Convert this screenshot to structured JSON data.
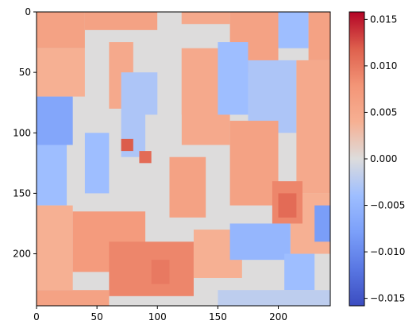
{
  "chart_data": {
    "type": "heatmap",
    "title": "",
    "xlabel": "",
    "ylabel": "",
    "xlim": [
      0,
      243
    ],
    "ylim": [
      243,
      0
    ],
    "x_ticks": [
      0,
      50,
      100,
      150,
      200
    ],
    "y_ticks": [
      0,
      50,
      100,
      150,
      200
    ],
    "colormap": "coolwarm",
    "colorbar": {
      "vmin": -0.0158,
      "vmax": 0.0158,
      "ticks": [
        0.015,
        0.01,
        0.005,
        0.0,
        -0.005,
        -0.01,
        -0.015
      ],
      "tick_labels": [
        "0.015",
        "0.010",
        "0.005",
        "0.000",
        "−0.005",
        "−0.010",
        "−0.015"
      ]
    },
    "regions": [
      {
        "x": [
          0,
          243
        ],
        "y": [
          0,
          243
        ],
        "value": 0.0
      },
      {
        "x": [
          0,
          40
        ],
        "y": [
          0,
          30
        ],
        "value": 0.006
      },
      {
        "x": [
          0,
          40
        ],
        "y": [
          30,
          70
        ],
        "value": 0.004
      },
      {
        "x": [
          40,
          100
        ],
        "y": [
          0,
          15
        ],
        "value": 0.006
      },
      {
        "x": [
          100,
          120
        ],
        "y": [
          0,
          20
        ],
        "value": 0.0
      },
      {
        "x": [
          120,
          160
        ],
        "y": [
          0,
          10
        ],
        "value": 0.005
      },
      {
        "x": [
          160,
          200
        ],
        "y": [
          0,
          50
        ],
        "value": 0.006
      },
      {
        "x": [
          200,
          225
        ],
        "y": [
          0,
          30
        ],
        "value": -0.004
      },
      {
        "x": [
          225,
          243
        ],
        "y": [
          0,
          40
        ],
        "value": 0.006
      },
      {
        "x": [
          0,
          30
        ],
        "y": [
          70,
          110
        ],
        "value": -0.007
      },
      {
        "x": [
          0,
          25
        ],
        "y": [
          110,
          160
        ],
        "value": -0.004
      },
      {
        "x": [
          40,
          60
        ],
        "y": [
          100,
          150
        ],
        "value": -0.004
      },
      {
        "x": [
          60,
          80
        ],
        "y": [
          25,
          80
        ],
        "value": 0.005
      },
      {
        "x": [
          70,
          100
        ],
        "y": [
          50,
          120
        ],
        "value": -0.003
      },
      {
        "x": [
          120,
          160
        ],
        "y": [
          30,
          110
        ],
        "value": 0.005
      },
      {
        "x": [
          150,
          175
        ],
        "y": [
          25,
          85
        ],
        "value": -0.004
      },
      {
        "x": [
          175,
          215
        ],
        "y": [
          40,
          100
        ],
        "value": -0.003
      },
      {
        "x": [
          215,
          243
        ],
        "y": [
          40,
          150
        ],
        "value": 0.005
      },
      {
        "x": [
          210,
          243
        ],
        "y": [
          150,
          200
        ],
        "value": 0.004
      },
      {
        "x": [
          230,
          243
        ],
        "y": [
          160,
          190
        ],
        "value": -0.008
      },
      {
        "x": [
          90,
          120
        ],
        "y": [
          85,
          160
        ],
        "value": 0.0
      },
      {
        "x": [
          110,
          140
        ],
        "y": [
          120,
          170
        ],
        "value": 0.006
      },
      {
        "x": [
          160,
          200
        ],
        "y": [
          90,
          160
        ],
        "value": 0.006
      },
      {
        "x": [
          195,
          220
        ],
        "y": [
          140,
          175
        ],
        "value": 0.009
      },
      {
        "x": [
          0,
          30
        ],
        "y": [
          160,
          230
        ],
        "value": 0.004
      },
      {
        "x": [
          30,
          90
        ],
        "y": [
          165,
          215
        ],
        "value": 0.007
      },
      {
        "x": [
          60,
          130
        ],
        "y": [
          190,
          235
        ],
        "value": 0.009
      },
      {
        "x": [
          130,
          170
        ],
        "y": [
          180,
          220
        ],
        "value": 0.004
      },
      {
        "x": [
          160,
          210
        ],
        "y": [
          175,
          205
        ],
        "value": -0.005
      },
      {
        "x": [
          205,
          230
        ],
        "y": [
          200,
          230
        ],
        "value": -0.004
      },
      {
        "x": [
          0,
          60
        ],
        "y": [
          230,
          243
        ],
        "value": 0.006
      },
      {
        "x": [
          150,
          243
        ],
        "y": [
          230,
          243
        ],
        "value": -0.002
      },
      {
        "x": [
          70,
          80
        ],
        "y": [
          105,
          115
        ],
        "value": 0.012
      },
      {
        "x": [
          85,
          95
        ],
        "y": [
          115,
          125
        ],
        "value": 0.011
      },
      {
        "x": [
          200,
          215
        ],
        "y": [
          150,
          170
        ],
        "value": 0.011
      },
      {
        "x": [
          95,
          110
        ],
        "y": [
          205,
          225
        ],
        "value": 0.01
      }
    ]
  }
}
